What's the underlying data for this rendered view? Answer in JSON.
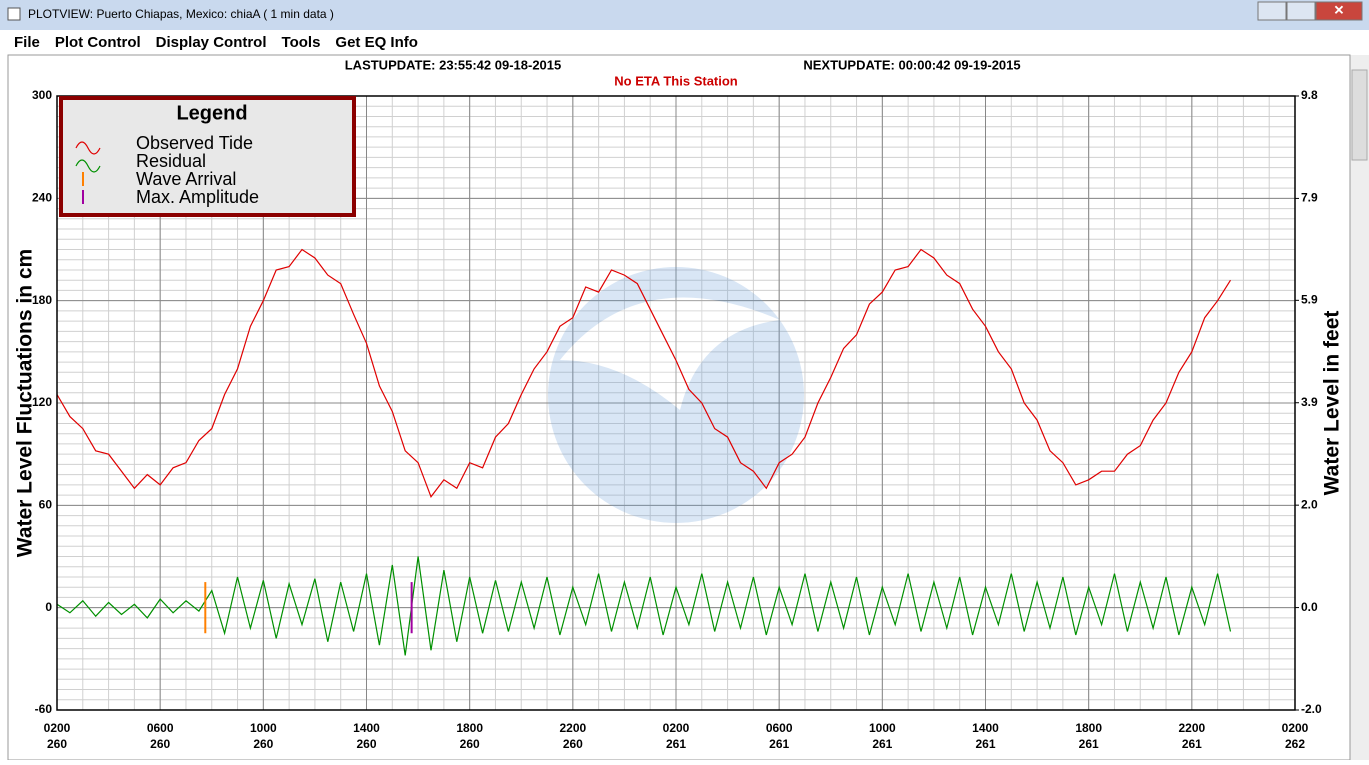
{
  "window": {
    "title": "PLOTVIEW:   Puerto Chiapas, Mexico: chiaA ( 1 min data )",
    "menu": [
      "File",
      "Plot Control",
      "Display Control",
      "Tools",
      "Get EQ Info"
    ]
  },
  "chart_data": {
    "type": "line",
    "last_update": "LASTUPDATE: 23:55:42 09-18-2015",
    "next_update": "NEXTUPDATE: 00:00:42 09-19-2015",
    "subtitle": "No ETA This Station",
    "y_label": "Water Level Fluctuations in cm",
    "y2_label": "Water Level in feet",
    "legend_title": "Legend",
    "grid": true,
    "minor_grid": true,
    "xlim": [
      0,
      48
    ],
    "xticks": [
      {
        "value": 0,
        "label": "0200"
      },
      {
        "value": 4,
        "label": "0600"
      },
      {
        "value": 8,
        "label": "1000"
      },
      {
        "value": 12,
        "label": "1400"
      },
      {
        "value": 16,
        "label": "1800"
      },
      {
        "value": 20,
        "label": "2200"
      },
      {
        "value": 24,
        "label": "0200"
      },
      {
        "value": 28,
        "label": "0600"
      },
      {
        "value": 32,
        "label": "1000"
      },
      {
        "value": 36,
        "label": "1400"
      },
      {
        "value": 40,
        "label": "1800"
      },
      {
        "value": 44,
        "label": "2200"
      },
      {
        "value": 48,
        "label": "0200"
      }
    ],
    "xtick_days": [
      "260",
      "260",
      "260",
      "260",
      "260",
      "260",
      "261",
      "261",
      "261",
      "261",
      "261",
      "261",
      "262"
    ],
    "ylim": [
      -60,
      300
    ],
    "yticks": [
      -60,
      0,
      60,
      120,
      180,
      240,
      300
    ],
    "y2lim": [
      -1.97,
      9.84
    ],
    "y2ticks": [
      {
        "value": -1.97,
        "label": "-2.0"
      },
      {
        "value": 0,
        "label": "0.0"
      },
      {
        "value": 1.97,
        "label": "2.0"
      },
      {
        "value": 3.94,
        "label": "3.9"
      },
      {
        "value": 5.91,
        "label": "5.9"
      },
      {
        "value": 7.87,
        "label": "7.9"
      },
      {
        "value": 9.84,
        "label": "9.8"
      }
    ],
    "x": [
      0,
      0.5,
      1,
      1.5,
      2,
      2.5,
      3,
      3.5,
      4,
      4.5,
      5,
      5.5,
      6,
      6.5,
      7,
      7.5,
      8,
      8.5,
      9,
      9.5,
      10,
      10.5,
      11,
      11.5,
      12,
      12.5,
      13,
      13.5,
      14,
      14.5,
      15,
      15.5,
      16,
      16.5,
      17,
      17.5,
      18,
      18.5,
      19,
      19.5,
      20,
      20.5,
      21,
      21.5,
      22,
      22.5,
      23,
      23.5,
      24,
      24.5,
      25,
      25.5,
      26,
      26.5,
      27,
      27.5,
      28,
      28.5,
      29,
      29.5,
      30,
      30.5,
      31,
      31.5,
      32,
      32.5,
      33,
      33.5,
      34,
      34.5,
      35,
      35.5,
      36,
      36.5,
      37,
      37.5,
      38,
      38.5,
      39,
      39.5,
      40,
      40.5,
      41,
      41.5,
      42,
      42.5,
      43,
      43.5,
      44,
      44.5,
      45,
      45.5
    ],
    "series": [
      {
        "name": "Observed Tide",
        "color": "#e00000",
        "values": [
          125,
          112,
          105,
          92,
          90,
          80,
          70,
          78,
          72,
          82,
          85,
          98,
          105,
          125,
          140,
          165,
          180,
          198,
          200,
          210,
          205,
          195,
          190,
          172,
          155,
          130,
          115,
          92,
          85,
          65,
          75,
          70,
          85,
          82,
          100,
          108,
          125,
          140,
          150,
          165,
          170,
          188,
          185,
          198,
          195,
          190,
          175,
          160,
          145,
          128,
          120,
          105,
          100,
          85,
          80,
          70,
          85,
          90,
          100,
          120,
          135,
          152,
          160,
          178,
          185,
          198,
          200,
          210,
          205,
          195,
          190,
          175,
          165,
          150,
          140,
          120,
          110,
          92,
          85,
          72,
          75,
          80,
          80,
          90,
          95,
          110,
          120,
          138,
          150,
          170,
          180,
          192
        ]
      },
      {
        "name": "Residual",
        "color": "#009000",
        "values": [
          2,
          -3,
          4,
          -5,
          3,
          -4,
          2,
          -6,
          5,
          -3,
          4,
          -2,
          10,
          -15,
          18,
          -12,
          16,
          -18,
          14,
          -10,
          17,
          -20,
          15,
          -14,
          20,
          -22,
          25,
          -28,
          30,
          -25,
          22,
          -20,
          18,
          -15,
          16,
          -14,
          15,
          -12,
          18,
          -16,
          12,
          -10,
          20,
          -14,
          15,
          -12,
          18,
          -16,
          12,
          -10,
          20,
          -14,
          15,
          -12,
          18,
          -16,
          12,
          -10,
          20,
          -14,
          15,
          -12,
          18,
          -16,
          12,
          -10,
          20,
          -14,
          15,
          -12,
          18,
          -16,
          12,
          -10,
          20,
          -14,
          15,
          -12,
          18,
          -16,
          12,
          -10,
          20,
          -14,
          15,
          -12,
          18,
          -16,
          12,
          -10,
          20,
          -14
        ]
      }
    ],
    "markers": [
      {
        "name": "Wave Arrival",
        "color": "#ff8000",
        "x": 5.75
      },
      {
        "name": "Max. Amplitude",
        "color": "#a000a0",
        "x": 13.75
      }
    ]
  }
}
